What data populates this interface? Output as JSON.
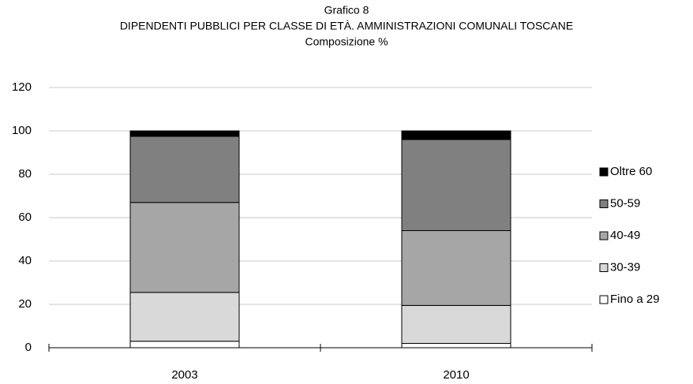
{
  "chart_data": {
    "type": "stacked_bar",
    "title": "Grafico 8",
    "subtitle": "DIPENDENTI PUBBLICI PER CLASSE DI ETÀ. AMMINISTRAZIONI COMUNALI TOSCANE",
    "subtitle2": "Composizione %",
    "categories": [
      "2003",
      "2010"
    ],
    "series": [
      {
        "name": "Fino a 29",
        "color": "#ffffff",
        "values": [
          3,
          2
        ]
      },
      {
        "name": "30-39",
        "color": "#d9d9d9",
        "values": [
          22.5,
          17.5
        ]
      },
      {
        "name": "40-49",
        "color": "#a6a6a6",
        "values": [
          41.5,
          34.5
        ]
      },
      {
        "name": "50-59",
        "color": "#808080",
        "values": [
          30.5,
          42
        ]
      },
      {
        "name": "Oltre 60",
        "color": "#000000",
        "values": [
          2.5,
          4
        ]
      }
    ],
    "ylim": [
      0,
      120
    ],
    "yticks": [
      0,
      20,
      40,
      60,
      80,
      100,
      120
    ],
    "grid": true,
    "legend": "right"
  }
}
